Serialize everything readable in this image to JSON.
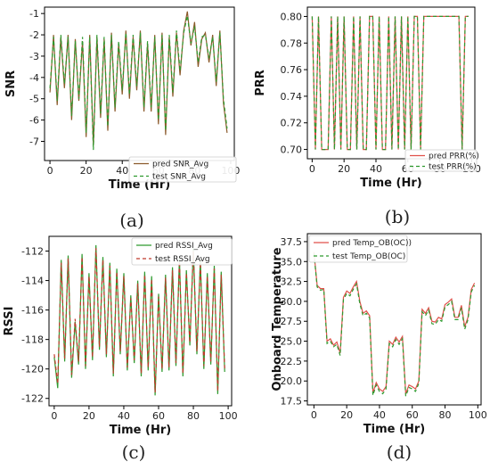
{
  "chart_data": [
    {
      "type": "line",
      "panel_label": "(a)",
      "xlabel": "Time (Hr)",
      "ylabel": "SNR",
      "xlim": [
        -3,
        102
      ],
      "ylim": [
        -7.9,
        -0.7
      ],
      "xticks": [
        0,
        20,
        40,
        60,
        80,
        100
      ],
      "yticks": [
        -7,
        -6,
        -5,
        -4,
        -3,
        -2,
        -1
      ],
      "legend_position": "lower-right",
      "x": [
        0,
        2,
        4,
        6,
        8,
        10,
        12,
        14,
        16,
        18,
        20,
        22,
        24,
        26,
        28,
        30,
        32,
        34,
        36,
        38,
        40,
        42,
        44,
        46,
        48,
        50,
        52,
        54,
        56,
        58,
        60,
        62,
        64,
        66,
        68,
        70,
        72,
        74,
        76,
        78,
        80,
        82,
        84,
        86,
        88,
        90,
        92,
        94,
        96,
        98
      ],
      "series": [
        {
          "name": "pred SNR_Avg",
          "color": "#8b5a2b",
          "dash": "solid",
          "values": [
            -4.7,
            -2.0,
            -5.3,
            -2.1,
            -4.5,
            -2.0,
            -6.0,
            -2.2,
            -5.1,
            -2.3,
            -6.8,
            -2.0,
            -7.2,
            -2.1,
            -5.9,
            -2.2,
            -6.5,
            -1.9,
            -5.6,
            -2.4,
            -4.8,
            -1.8,
            -5.0,
            -2.1,
            -4.6,
            -1.8,
            -5.6,
            -2.4,
            -5.6,
            -2.0,
            -6.2,
            -1.9,
            -6.7,
            -2.1,
            -4.9,
            -1.9,
            -3.9,
            -1.8,
            -0.9,
            -2.5,
            -1.4,
            -3.5,
            -2.2,
            -1.9,
            -3.3,
            -2.0,
            -4.4,
            -1.8,
            -5.2,
            -6.6
          ]
        },
        {
          "name": "test SNR_Avg",
          "color": "#2e9a2e",
          "dash": "4,3",
          "values": [
            -4.5,
            -2.1,
            -5.1,
            -2.0,
            -4.3,
            -2.1,
            -5.8,
            -2.3,
            -5.0,
            -2.1,
            -6.6,
            -2.1,
            -7.4,
            -2.0,
            -5.7,
            -2.1,
            -6.3,
            -2.0,
            -5.4,
            -2.3,
            -4.6,
            -1.9,
            -4.8,
            -2.0,
            -4.4,
            -1.9,
            -5.4,
            -2.3,
            -5.4,
            -2.1,
            -6.0,
            -2.0,
            -6.5,
            -2.0,
            -4.7,
            -1.8,
            -3.7,
            -1.9,
            -1.1,
            -2.4,
            -1.6,
            -3.3,
            -2.1,
            -2.0,
            -3.1,
            -2.1,
            -4.2,
            -1.9,
            -5.0,
            -6.4
          ]
        }
      ]
    },
    {
      "type": "line",
      "panel_label": "(b)",
      "xlabel": "Time (Hr)",
      "ylabel": "PRR",
      "xlim": [
        -3,
        102
      ],
      "ylim": [
        0.693,
        0.807
      ],
      "xticks": [
        0,
        20,
        40,
        60,
        80,
        100
      ],
      "yticks": [
        0.7,
        0.72,
        0.74,
        0.76,
        0.78,
        0.8
      ],
      "legend_position": "lower-right",
      "x": [
        0,
        2,
        4,
        6,
        8,
        10,
        12,
        14,
        16,
        18,
        20,
        22,
        24,
        26,
        28,
        30,
        32,
        34,
        36,
        38,
        40,
        42,
        44,
        46,
        48,
        50,
        52,
        54,
        56,
        58,
        60,
        62,
        64,
        66,
        68,
        70,
        72,
        74,
        76,
        78,
        80,
        82,
        84,
        86,
        88,
        90,
        92,
        94,
        96,
        98
      ],
      "series": [
        {
          "name": "pred PRR(%)",
          "color": "#e0504a",
          "dash": "solid",
          "values": [
            0.8,
            0.7,
            0.8,
            0.7,
            0.7,
            0.7,
            0.8,
            0.7,
            0.8,
            0.7,
            0.8,
            0.7,
            0.7,
            0.8,
            0.7,
            0.8,
            0.7,
            0.7,
            0.8,
            0.8,
            0.7,
            0.8,
            0.7,
            0.7,
            0.8,
            0.7,
            0.8,
            0.7,
            0.8,
            0.7,
            0.8,
            0.7,
            0.8,
            0.8,
            0.7,
            0.8,
            0.8,
            0.8,
            0.8,
            0.8,
            0.8,
            0.8,
            0.8,
            0.8,
            0.8,
            0.8,
            0.8,
            0.7,
            0.8,
            0.8
          ]
        },
        {
          "name": "test PRR(%)",
          "color": "#2e9a2e",
          "dash": "4,3",
          "values": [
            0.8,
            0.7,
            0.8,
            0.7,
            0.7,
            0.7,
            0.8,
            0.7,
            0.8,
            0.7,
            0.8,
            0.7,
            0.7,
            0.8,
            0.7,
            0.8,
            0.7,
            0.7,
            0.8,
            0.8,
            0.7,
            0.8,
            0.7,
            0.7,
            0.8,
            0.7,
            0.8,
            0.7,
            0.8,
            0.7,
            0.8,
            0.7,
            0.8,
            0.8,
            0.7,
            0.8,
            0.8,
            0.8,
            0.8,
            0.8,
            0.8,
            0.8,
            0.8,
            0.8,
            0.8,
            0.8,
            0.8,
            0.7,
            0.8,
            0.8
          ]
        }
      ]
    },
    {
      "type": "line",
      "panel_label": "(c)",
      "xlabel": "Time (Hr)",
      "ylabel": "RSSI",
      "xlim": [
        -3,
        102
      ],
      "ylim": [
        -122.5,
        -111.0
      ],
      "xticks": [
        0,
        20,
        40,
        60,
        80,
        100
      ],
      "yticks": [
        -122,
        -120,
        -118,
        -116,
        -114,
        -112
      ],
      "legend_position": "top-right",
      "x": [
        0,
        2,
        4,
        6,
        8,
        10,
        12,
        14,
        16,
        18,
        20,
        22,
        24,
        26,
        28,
        30,
        32,
        34,
        36,
        38,
        40,
        42,
        44,
        46,
        48,
        50,
        52,
        54,
        56,
        58,
        60,
        62,
        64,
        66,
        68,
        70,
        72,
        74,
        76,
        78,
        80,
        82,
        84,
        86,
        88,
        90,
        92,
        94,
        96,
        98
      ],
      "series": [
        {
          "name": "pred RSSI_Avg",
          "color": "#2e9a2e",
          "dash": "solid",
          "values": [
            -119.2,
            -121.3,
            -112.6,
            -119.5,
            -112.3,
            -120.6,
            -116.8,
            -119.7,
            -112.2,
            -120.0,
            -113.5,
            -119.4,
            -111.6,
            -118.7,
            -112.4,
            -119.2,
            -112.8,
            -120.5,
            -113.2,
            -119.0,
            -113.5,
            -120.1,
            -115.0,
            -119.6,
            -114.0,
            -120.5,
            -113.4,
            -120.1,
            -113.7,
            -121.8,
            -114.9,
            -120.2,
            -113.6,
            -120.1,
            -113.1,
            -119.8,
            -112.5,
            -120.5,
            -113.3,
            -118.4,
            -111.8,
            -119.0,
            -112.6,
            -120.0,
            -113.5,
            -119.7,
            -113.0,
            -121.7,
            -113.4,
            -120.2
          ]
        },
        {
          "name": "test RSSI_Avg",
          "color": "#c0392b",
          "dash": "4,3",
          "values": [
            -119.0,
            -121.0,
            -112.8,
            -119.3,
            -112.5,
            -120.4,
            -116.6,
            -119.5,
            -112.4,
            -119.8,
            -113.7,
            -119.2,
            -111.8,
            -118.5,
            -112.6,
            -119.0,
            -113.0,
            -120.3,
            -113.4,
            -118.8,
            -113.7,
            -119.9,
            -115.2,
            -119.4,
            -114.2,
            -120.3,
            -113.6,
            -119.9,
            -113.9,
            -121.6,
            -115.1,
            -120.0,
            -113.8,
            -119.9,
            -113.3,
            -119.6,
            -112.7,
            -120.3,
            -113.5,
            -118.2,
            -112.0,
            -118.8,
            -112.8,
            -119.8,
            -113.7,
            -119.5,
            -113.2,
            -121.5,
            -113.6,
            -120.0
          ]
        }
      ]
    },
    {
      "type": "line",
      "panel_label": "(d)",
      "xlabel": "Time (Hr)",
      "ylabel": "Onboard Temperature",
      "xlim": [
        -4,
        102
      ],
      "ylim": [
        17.0,
        38.5
      ],
      "xticks": [
        0,
        20,
        40,
        60,
        80,
        100
      ],
      "yticks": [
        17.5,
        20.0,
        22.5,
        25.0,
        27.5,
        30.0,
        32.5,
        35.0,
        37.5
      ],
      "legend_position": "top-left",
      "x": [
        0,
        2,
        4,
        6,
        8,
        10,
        12,
        14,
        16,
        18,
        20,
        22,
        24,
        26,
        28,
        30,
        32,
        34,
        36,
        38,
        40,
        42,
        44,
        46,
        48,
        50,
        52,
        54,
        56,
        58,
        60,
        62,
        64,
        66,
        68,
        70,
        72,
        74,
        76,
        78,
        80,
        82,
        84,
        86,
        88,
        90,
        92,
        94,
        96,
        98
      ],
      "series": [
        {
          "name": "pred Temp_OB(OC))",
          "color": "#e0504a",
          "dash": "solid",
          "values": [
            36.2,
            32.0,
            31.6,
            31.6,
            25.0,
            25.3,
            24.5,
            24.9,
            23.5,
            30.5,
            31.3,
            31.0,
            31.8,
            32.5,
            30.0,
            28.5,
            28.8,
            28.2,
            18.5,
            19.8,
            19.0,
            18.7,
            19.3,
            25.0,
            24.6,
            25.5,
            24.9,
            25.6,
            18.4,
            19.5,
            19.3,
            19.0,
            20.0,
            29.0,
            28.5,
            29.2,
            27.5,
            27.4,
            28.0,
            27.8,
            29.6,
            29.9,
            30.3,
            28.0,
            28.0,
            29.5,
            26.8,
            28.0,
            31.5,
            32.3
          ]
        },
        {
          "name": "test Temp_OB(OC)",
          "color": "#2e9a2e",
          "dash": "4,3",
          "values": [
            36.0,
            31.8,
            31.4,
            31.5,
            24.7,
            25.0,
            24.3,
            24.6,
            23.2,
            30.2,
            31.0,
            30.7,
            31.5,
            32.2,
            29.7,
            28.2,
            28.5,
            27.9,
            18.2,
            19.5,
            18.7,
            18.4,
            19.0,
            24.7,
            24.3,
            25.2,
            24.6,
            25.3,
            18.1,
            19.2,
            19.0,
            18.7,
            19.7,
            28.7,
            28.2,
            28.9,
            27.2,
            27.1,
            27.7,
            27.5,
            29.3,
            29.6,
            30.0,
            27.7,
            27.7,
            29.2,
            26.5,
            27.7,
            31.2,
            32.0
          ]
        }
      ]
    }
  ]
}
